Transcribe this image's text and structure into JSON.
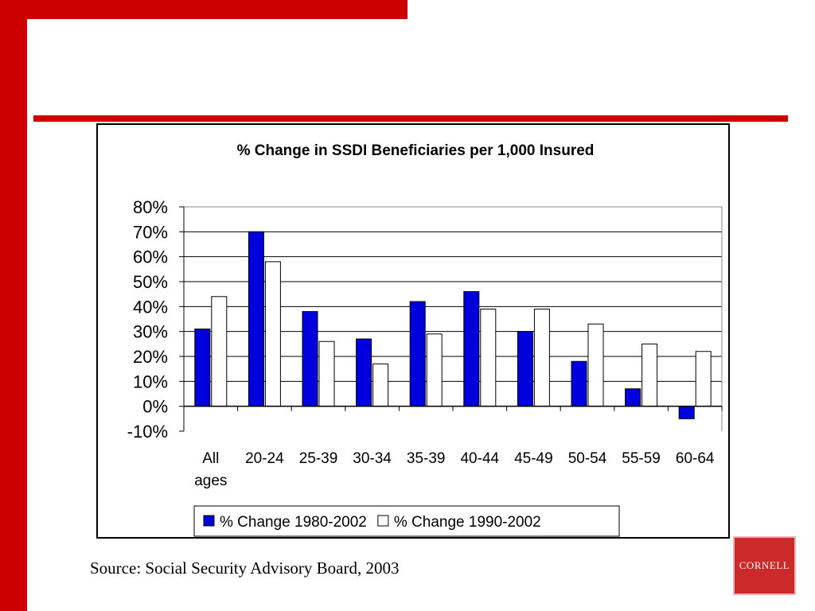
{
  "chart_data": {
    "type": "bar",
    "title": "% Change in SSDI Beneficiaries per 1,000 Insured",
    "categories": [
      "All ages",
      "20-24",
      "25-39",
      "30-34",
      "35-39",
      "40-44",
      "45-49",
      "50-54",
      "55-59",
      "60-64"
    ],
    "series": [
      {
        "name": "% Change 1980-2002",
        "color": "#0000dd",
        "values": [
          31,
          70,
          38,
          27,
          42,
          46,
          30,
          18,
          7,
          -5
        ]
      },
      {
        "name": "% Change 1990-2002",
        "color": "#ffffff",
        "values": [
          44,
          58,
          26,
          17,
          29,
          39,
          39,
          33,
          25,
          22
        ]
      }
    ],
    "yticks": [
      "80%",
      "70%",
      "60%",
      "50%",
      "40%",
      "30%",
      "20%",
      "10%",
      "0%",
      "-10%"
    ],
    "ylim": [
      -10,
      80
    ],
    "grid": true,
    "legend": "bottom"
  },
  "source": "Source: Social Security Advisory Board, 2003",
  "logo": "CORNELL"
}
